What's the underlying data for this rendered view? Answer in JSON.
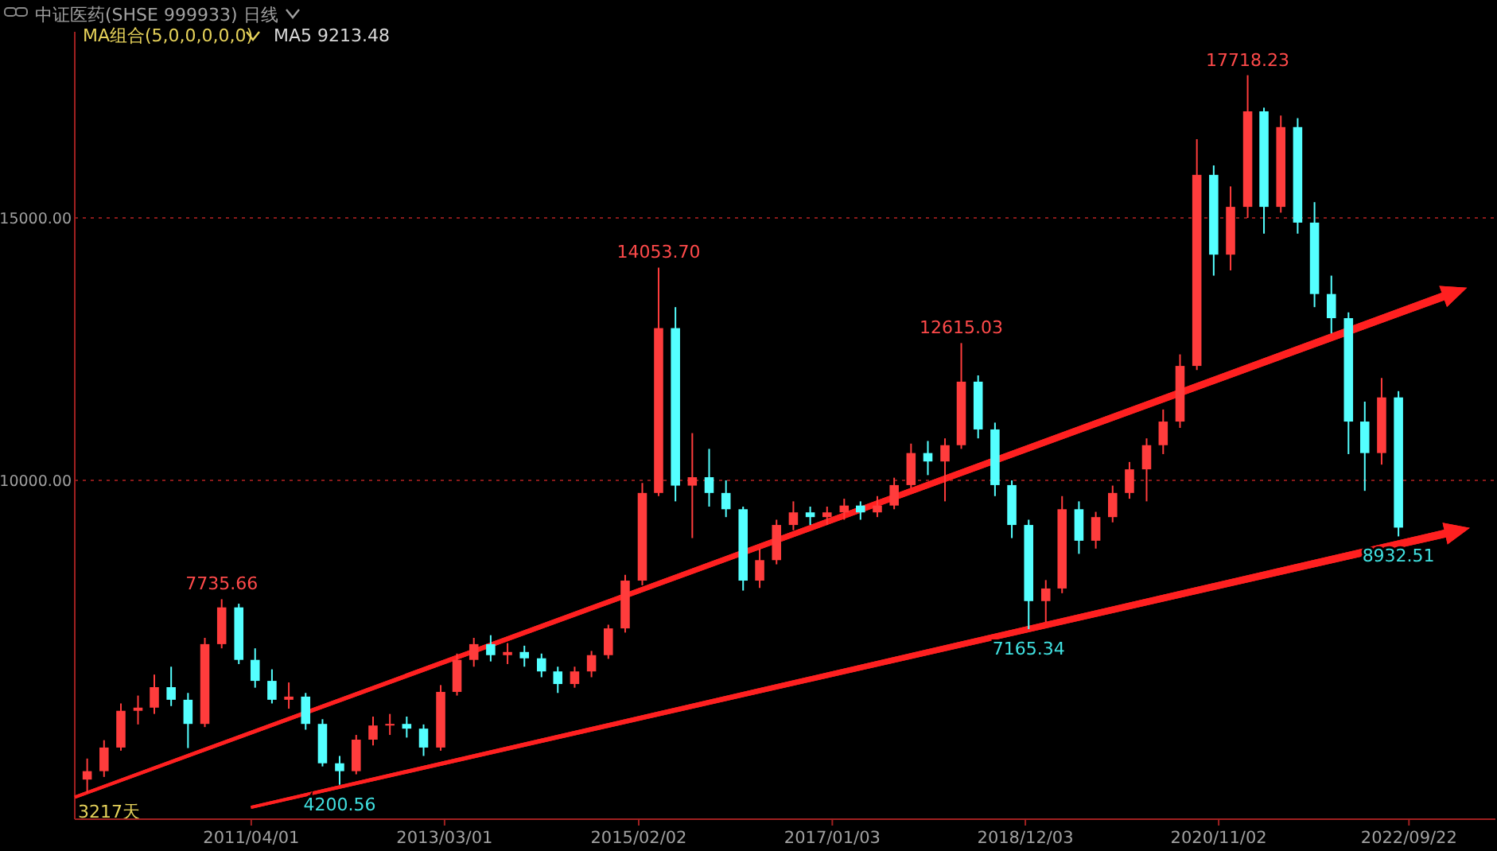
{
  "chart_data": {
    "type": "candlestick",
    "title": "中证医药(SHSE 999933)",
    "annotations": [
      "日线",
      "MA组合(5,0,0,0,0,0)",
      "MA5 9213.48",
      "3217天",
      {
        "text": "7735.66",
        "x": "2010-12",
        "y": 7735.66
      },
      {
        "text": "4200.56",
        "x": "2012-02",
        "y": 4200.56
      },
      {
        "text": "14053.70",
        "x": "2015-04",
        "y": 14053.7
      },
      {
        "text": "12615.03",
        "x": "2018-04",
        "y": 12615.03
      },
      {
        "text": "7165.34",
        "x": "2018-12",
        "y": 7165.34
      },
      {
        "text": "17718.23",
        "x": "2021-02",
        "y": 17718.23
      },
      {
        "text": "8932.51",
        "x": "2022-08",
        "y": 8932.51
      }
    ],
    "x": [
      "2009-08",
      "2009-10",
      "2009-12",
      "2010-02",
      "2010-04",
      "2010-06",
      "2010-08",
      "2010-10",
      "2010-12",
      "2011-02",
      "2011-04",
      "2011-06",
      "2011-08",
      "2011-10",
      "2011-12",
      "2012-02",
      "2012-04",
      "2012-06",
      "2012-08",
      "2012-10",
      "2012-12",
      "2013-02",
      "2013-04",
      "2013-06",
      "2013-08",
      "2013-10",
      "2013-12",
      "2014-02",
      "2014-04",
      "2014-06",
      "2014-08",
      "2014-10",
      "2014-12",
      "2015-02",
      "2015-04",
      "2015-06",
      "2015-08",
      "2015-10",
      "2015-12",
      "2016-02",
      "2016-04",
      "2016-06",
      "2016-08",
      "2016-10",
      "2016-12",
      "2017-02",
      "2017-04",
      "2017-06",
      "2017-08",
      "2017-10",
      "2017-12",
      "2018-02",
      "2018-04",
      "2018-06",
      "2018-08",
      "2018-10",
      "2018-12",
      "2019-02",
      "2019-04",
      "2019-06",
      "2019-08",
      "2019-10",
      "2019-12",
      "2020-02",
      "2020-04",
      "2020-06",
      "2020-08",
      "2020-10",
      "2020-12",
      "2021-02",
      "2021-04",
      "2021-06",
      "2021-08",
      "2021-10",
      "2021-12",
      "2022-02",
      "2022-04",
      "2022-06",
      "2022-08"
    ],
    "ohlc": [
      [
        4300,
        4700,
        4050,
        4460
      ],
      [
        4460,
        5050,
        4350,
        4910
      ],
      [
        4910,
        5750,
        4850,
        5610
      ],
      [
        5610,
        5900,
        5350,
        5670
      ],
      [
        5670,
        6300,
        5550,
        6060
      ],
      [
        6060,
        6450,
        5700,
        5820
      ],
      [
        5820,
        5950,
        4900,
        5360
      ],
      [
        5360,
        7000,
        5300,
        6880
      ],
      [
        6880,
        7735.66,
        6800,
        7580
      ],
      [
        7580,
        7650,
        6500,
        6580
      ],
      [
        6580,
        6800,
        6050,
        6180
      ],
      [
        6180,
        6400,
        5750,
        5820
      ],
      [
        5820,
        6150,
        5650,
        5880
      ],
      [
        5880,
        5950,
        5250,
        5360
      ],
      [
        5360,
        5450,
        4550,
        4610
      ],
      [
        4610,
        4750,
        4200.56,
        4460
      ],
      [
        4460,
        5150,
        4400,
        5060
      ],
      [
        5060,
        5500,
        4950,
        5330
      ],
      [
        5330,
        5550,
        5150,
        5360
      ],
      [
        5360,
        5500,
        5100,
        5270
      ],
      [
        5270,
        5350,
        4750,
        4910
      ],
      [
        4910,
        6100,
        4850,
        5970
      ],
      [
        5970,
        6700,
        5900,
        6580
      ],
      [
        6580,
        7000,
        6450,
        6880
      ],
      [
        6880,
        7050,
        6550,
        6670
      ],
      [
        6670,
        6900,
        6500,
        6730
      ],
      [
        6730,
        6850,
        6450,
        6610
      ],
      [
        6610,
        6700,
        6250,
        6360
      ],
      [
        6360,
        6450,
        5950,
        6120
      ],
      [
        6120,
        6450,
        6050,
        6360
      ],
      [
        6360,
        6750,
        6250,
        6670
      ],
      [
        6670,
        7250,
        6600,
        7180
      ],
      [
        7180,
        8200,
        7100,
        8090
      ],
      [
        8090,
        9950,
        8000,
        9760
      ],
      [
        9760,
        14053.7,
        9700,
        12900
      ],
      [
        12900,
        13300,
        9600,
        9900
      ],
      [
        9900,
        10900,
        8900,
        10060
      ],
      [
        10060,
        10600,
        9500,
        9760
      ],
      [
        9760,
        10000,
        9300,
        9450
      ],
      [
        9450,
        9500,
        7900,
        8090
      ],
      [
        8090,
        8700,
        7950,
        8480
      ],
      [
        8480,
        9250,
        8400,
        9150
      ],
      [
        9150,
        9600,
        9050,
        9390
      ],
      [
        9390,
        9500,
        9150,
        9300
      ],
      [
        9300,
        9500,
        9150,
        9390
      ],
      [
        9390,
        9650,
        9250,
        9520
      ],
      [
        9520,
        9600,
        9250,
        9390
      ],
      [
        9390,
        9700,
        9300,
        9520
      ],
      [
        9520,
        10050,
        9450,
        9910
      ],
      [
        9910,
        10700,
        9850,
        10520
      ],
      [
        10520,
        10750,
        10100,
        10360
      ],
      [
        10360,
        10800,
        9600,
        10670
      ],
      [
        10670,
        12615.03,
        10600,
        11880
      ],
      [
        11880,
        12000,
        10800,
        10970
      ],
      [
        10970,
        11100,
        9700,
        9910
      ],
      [
        9910,
        10000,
        8900,
        9150
      ],
      [
        9150,
        9250,
        7165.34,
        7700
      ],
      [
        7700,
        8100,
        7300,
        7940
      ],
      [
        7940,
        9700,
        7850,
        9450
      ],
      [
        9450,
        9600,
        8600,
        8850
      ],
      [
        8850,
        9400,
        8700,
        9300
      ],
      [
        9300,
        9900,
        9200,
        9760
      ],
      [
        9760,
        10350,
        9650,
        10210
      ],
      [
        10210,
        10800,
        9600,
        10670
      ],
      [
        10670,
        11350,
        10500,
        11120
      ],
      [
        11120,
        12400,
        11000,
        12180
      ],
      [
        12180,
        16500,
        12100,
        15820
      ],
      [
        15820,
        16000,
        13900,
        14300
      ],
      [
        14300,
        15600,
        14000,
        15210
      ],
      [
        15210,
        17718.23,
        15000,
        17030
      ],
      [
        17030,
        17100,
        14700,
        15210
      ],
      [
        15210,
        16950,
        15100,
        16730
      ],
      [
        16730,
        16900,
        14700,
        14910
      ],
      [
        14910,
        15300,
        13300,
        13550
      ],
      [
        13550,
        13900,
        12800,
        13090
      ],
      [
        13090,
        13200,
        10500,
        11120
      ],
      [
        11120,
        11500,
        9800,
        10520
      ],
      [
        10520,
        11950,
        10300,
        11580
      ],
      [
        11580,
        11700,
        8932.51,
        9100
      ]
    ],
    "colors": [
      "#ff3c3c",
      "#ff3c3c",
      "#ff3c3c",
      "#ff3c3c",
      "#ff3c3c",
      "#54ffff",
      "#54ffff",
      "#ff3c3c",
      "#ff3c3c",
      "#54ffff",
      "#54ffff",
      "#54ffff",
      "#ff3c3c",
      "#54ffff",
      "#54ffff",
      "#54ffff",
      "#ff3c3c",
      "#ff3c3c",
      "#ff3c3c",
      "#54ffff",
      "#54ffff",
      "#ff3c3c",
      "#ff3c3c",
      "#ff3c3c",
      "#54ffff",
      "#ff3c3c",
      "#54ffff",
      "#54ffff",
      "#54ffff",
      "#ff3c3c",
      "#ff3c3c",
      "#ff3c3c",
      "#ff3c3c",
      "#ff3c3c",
      "#ff3c3c",
      "#54ffff",
      "#ff3c3c",
      "#54ffff",
      "#54ffff",
      "#54ffff",
      "#ff3c3c",
      "#ff3c3c",
      "#ff3c3c",
      "#54ffff",
      "#ff3c3c",
      "#ff3c3c",
      "#54ffff",
      "#ff3c3c",
      "#ff3c3c",
      "#ff3c3c",
      "#54ffff",
      "#ff3c3c",
      "#ff3c3c",
      "#54ffff",
      "#54ffff",
      "#54ffff",
      "#54ffff",
      "#ff3c3c",
      "#ff3c3c",
      "#54ffff",
      "#ff3c3c",
      "#ff3c3c",
      "#ff3c3c",
      "#ff3c3c",
      "#ff3c3c",
      "#ff3c3c",
      "#ff3c3c",
      "#54ffff",
      "#ff3c3c",
      "#ff3c3c",
      "#54ffff",
      "#ff3c3c",
      "#54ffff",
      "#54ffff",
      "#54ffff",
      "#54ffff",
      "#54ffff",
      "#ff3c3c",
      "#54ffff"
    ],
    "xlim": [
      "2009-07-01",
      "2023-08-01"
    ],
    "xticks": [
      {
        "value": "2011-04-01",
        "label": "2011/04/01"
      },
      {
        "value": "2013-03-01",
        "label": "2013/03/01"
      },
      {
        "value": "2015-02-02",
        "label": "2015/02/02"
      },
      {
        "value": "2017-01-03",
        "label": "2017/01/03"
      },
      {
        "value": "2018-12-03",
        "label": "2018/12/03"
      },
      {
        "value": "2020-11-02",
        "label": "2020/11/02"
      },
      {
        "value": "2022-09-22",
        "label": "2022/09/22"
      }
    ],
    "ylim": [
      3545,
      18545
    ],
    "yticks": [
      {
        "value": 10000,
        "label": "10000.00"
      },
      {
        "value": 15000,
        "label": "15000.00"
      }
    ],
    "grid": "y"
  }
}
